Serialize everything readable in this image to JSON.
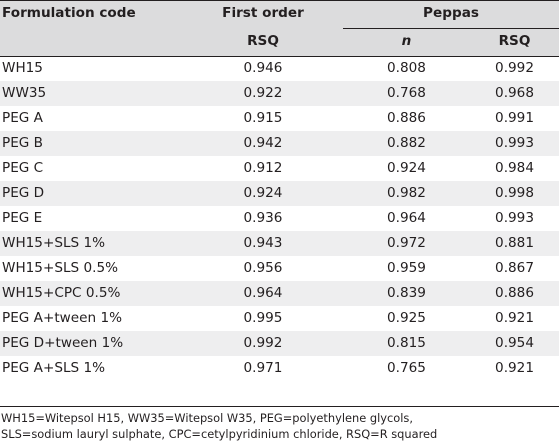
{
  "table": {
    "headers": {
      "formulation_code": "Formulation code",
      "first_order": "First order",
      "peppas": "Peppas",
      "first_order_rsq": "RSQ",
      "peppas_n": "n",
      "peppas_rsq": "RSQ"
    },
    "rows": [
      {
        "code": "WH15",
        "first_order_rsq": "0.946",
        "peppas_n": "0.808",
        "peppas_rsq": "0.992"
      },
      {
        "code": "WW35",
        "first_order_rsq": "0.922",
        "peppas_n": "0.768",
        "peppas_rsq": "0.968"
      },
      {
        "code": "PEG A",
        "first_order_rsq": "0.915",
        "peppas_n": "0.886",
        "peppas_rsq": "0.991"
      },
      {
        "code": "PEG B",
        "first_order_rsq": "0.942",
        "peppas_n": "0.882",
        "peppas_rsq": "0.993"
      },
      {
        "code": "PEG C",
        "first_order_rsq": "0.912",
        "peppas_n": "0.924",
        "peppas_rsq": "0.984"
      },
      {
        "code": "PEG D",
        "first_order_rsq": "0.924",
        "peppas_n": "0.982",
        "peppas_rsq": "0.998"
      },
      {
        "code": "PEG E",
        "first_order_rsq": "0.936",
        "peppas_n": "0.964",
        "peppas_rsq": "0.993"
      },
      {
        "code": "WH15+SLS 1%",
        "first_order_rsq": "0.943",
        "peppas_n": "0.972",
        "peppas_rsq": "0.881"
      },
      {
        "code": "WH15+SLS 0.5%",
        "first_order_rsq": "0.956",
        "peppas_n": "0.959",
        "peppas_rsq": "0.867"
      },
      {
        "code": "WH15+CPC 0.5%",
        "first_order_rsq": "0.964",
        "peppas_n": "0.839",
        "peppas_rsq": "0.886"
      },
      {
        "code": "PEG A+tween 1%",
        "first_order_rsq": "0.995",
        "peppas_n": "0.925",
        "peppas_rsq": "0.921"
      },
      {
        "code": "PEG D+tween 1%",
        "first_order_rsq": "0.992",
        "peppas_n": "0.815",
        "peppas_rsq": "0.954"
      },
      {
        "code": "PEG A+SLS 1%",
        "first_order_rsq": "0.971",
        "peppas_n": "0.765",
        "peppas_rsq": "0.921"
      }
    ],
    "footnote_line1": "WH15=Witepsol H15, WW35=Witepsol W35, PEG=polyethylene glycols,",
    "footnote_line2": "SLS=sodium lauryl sulphate, CPC=cetylpyridinium chloride, RSQ=R squared"
  }
}
